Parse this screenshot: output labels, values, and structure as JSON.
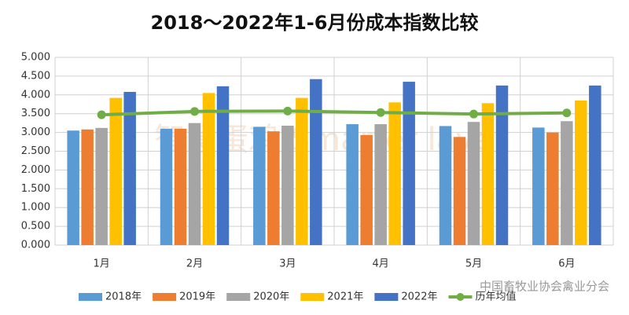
{
  "chart_data": {
    "type": "bar",
    "title": "2018～2022年1-6月份成本指数比较",
    "categories": [
      "1月",
      "2月",
      "3月",
      "4月",
      "5月",
      "6月"
    ],
    "series": [
      {
        "name": "2018年",
        "color": "#5b9bd5",
        "values": [
          3.05,
          3.1,
          3.15,
          3.22,
          3.17,
          3.13
        ]
      },
      {
        "name": "2019年",
        "color": "#ed7d31",
        "values": [
          3.08,
          3.1,
          3.03,
          2.93,
          2.88,
          3.0
        ]
      },
      {
        "name": "2020年",
        "color": "#a5a5a5",
        "values": [
          3.12,
          3.25,
          3.18,
          3.22,
          3.28,
          3.3
        ]
      },
      {
        "name": "2021年",
        "color": "#ffc000",
        "values": [
          3.92,
          4.05,
          3.92,
          3.8,
          3.78,
          3.85
        ]
      },
      {
        "name": "2022年",
        "color": "#4472c4",
        "values": [
          4.08,
          4.23,
          4.42,
          4.35,
          4.25,
          4.25
        ]
      },
      {
        "name": "历年均值",
        "color": "#70ad47",
        "type": "line",
        "values": [
          3.47,
          3.56,
          3.57,
          3.53,
          3.49,
          3.52
        ]
      }
    ],
    "ylim": [
      0,
      5
    ],
    "yticks": [
      {
        "value": 0,
        "label": "0.000"
      },
      {
        "value": 0.5,
        "label": "0.500"
      },
      {
        "value": 1,
        "label": "1.000"
      },
      {
        "value": 1.5,
        "label": "1.500"
      },
      {
        "value": 2,
        "label": "2.000"
      },
      {
        "value": 2.5,
        "label": "2.500"
      },
      {
        "value": 3,
        "label": "3.000"
      },
      {
        "value": 3.5,
        "label": "3.500"
      },
      {
        "value": 4,
        "label": "4.000"
      },
      {
        "value": 4.5,
        "label": "4.500"
      },
      {
        "value": 5,
        "label": "5.000"
      }
    ],
    "grid": true,
    "legend": "bottom",
    "watermark": "智慧蛋鸡 Smarter layer",
    "source_mark": "中国畜牧业协会禽业分会"
  }
}
